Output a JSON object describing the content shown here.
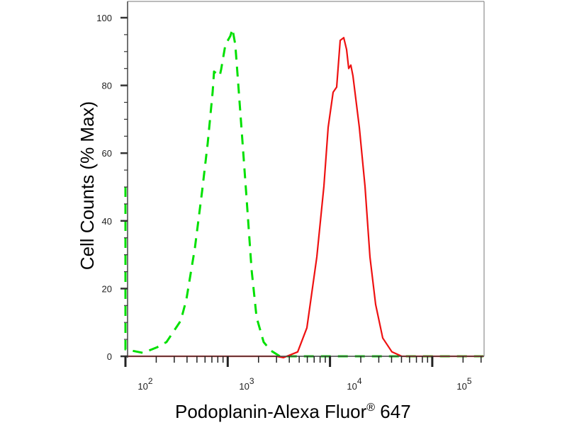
{
  "chart_data": {
    "type": "line",
    "title": "",
    "xlabel": "Podoplanin-Alexa Fluor® 647",
    "ylabel": "Cell Counts (% Max)",
    "x_scale": "log",
    "xlim": [
      100,
      316000
    ],
    "ylim": [
      0,
      100
    ],
    "x_tick_exponents": [
      2,
      3,
      4,
      5
    ],
    "x_tick_base": "10",
    "y_ticks": [
      0,
      20,
      40,
      60,
      80,
      100
    ],
    "y_tick_labels": [
      "0",
      "20",
      "40",
      "60",
      "80",
      "100"
    ],
    "grid": false,
    "legend": "none",
    "series": [
      {
        "color": "#00e000",
        "style": "dashed",
        "x": [
          100,
          100,
          114,
          149,
          205,
          252,
          347,
          394,
          478,
          560,
          637,
          712,
          735,
          835,
          862,
          949,
          1061,
          1112,
          1186,
          1285,
          1390,
          1531,
          1713,
          1914,
          2245,
          2635,
          3240,
          316000
        ],
        "y": [
          50,
          2,
          1.7,
          1.0,
          2.7,
          4.2,
          10.5,
          16.7,
          32,
          48.5,
          62.8,
          78,
          84.1,
          82.8,
          84.7,
          92,
          94.6,
          96.7,
          92,
          78,
          64,
          46.4,
          25.5,
          11.5,
          4.2,
          1.7,
          0,
          0
        ]
      },
      {
        "color": "#ee1111",
        "style": "solid",
        "x": [
          100,
          3000,
          3510,
          4830,
          5940,
          7430,
          8720,
          9600,
          10720,
          11620,
          12590,
          13620,
          14520,
          15240,
          15990,
          16780,
          19360,
          21980,
          24600,
          27930,
          32800,
          40360,
          50400,
          316000
        ],
        "y": [
          0,
          0,
          -0.4,
          1.3,
          8.4,
          29.3,
          50.2,
          67.6,
          78,
          79.5,
          93.3,
          94.1,
          90.6,
          85,
          86,
          82.8,
          67.6,
          50.2,
          29.3,
          15.3,
          5.4,
          1.3,
          0,
          0
        ]
      }
    ]
  }
}
